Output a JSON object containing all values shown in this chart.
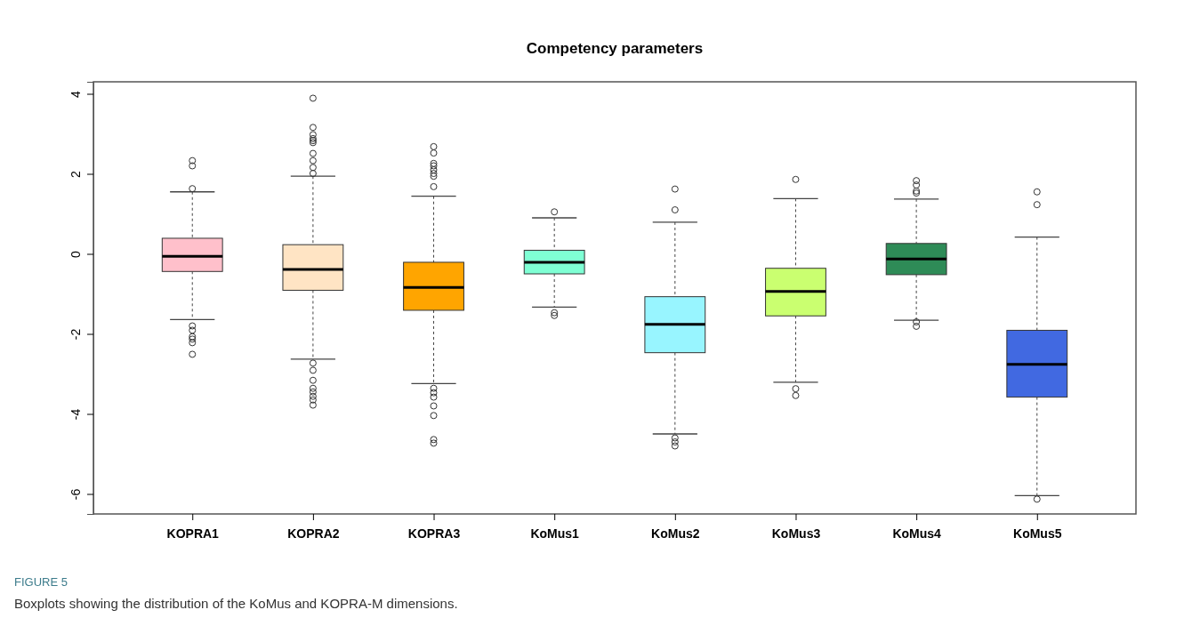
{
  "chart_data": {
    "type": "box",
    "title": "Competency parameters",
    "categories": [
      "KOPRA1",
      "KOPRA2",
      "KOPRA3",
      "KoMus1",
      "KoMus2",
      "KoMus3",
      "KoMus4",
      "KoMus5"
    ],
    "colors": [
      "#ffc0cb",
      "#ffe4c4",
      "#ffa500",
      "#7fffd4",
      "#98f5ff",
      "#caff70",
      "#2e8b57",
      "#4169e1"
    ],
    "boxes": [
      {
        "low": -1.64,
        "q1": -0.44,
        "median": -0.06,
        "q3": 0.39,
        "high": 1.55,
        "outliers": [
          1.63,
          2.2,
          2.33,
          -1.8,
          -1.91,
          -2.07,
          -2.13,
          -2.22,
          -2.51
        ]
      },
      {
        "low": -2.63,
        "q1": -0.91,
        "median": -0.39,
        "q3": 0.23,
        "high": 1.94,
        "outliers": [
          3.89,
          3.16,
          2.98,
          2.88,
          2.83,
          2.78,
          2.51,
          2.33,
          2.16,
          2.01,
          -2.73,
          -2.91,
          -3.16,
          -3.36,
          -3.45,
          -3.56,
          -3.65,
          -3.78
        ]
      },
      {
        "low": -3.24,
        "q1": -1.41,
        "median": -0.84,
        "q3": -0.21,
        "high": 1.44,
        "outliers": [
          2.68,
          2.52,
          2.26,
          2.2,
          2.1,
          2.01,
          1.94,
          1.68,
          -3.36,
          -3.47,
          -3.58,
          -3.8,
          -4.04,
          -4.64,
          -4.73
        ]
      },
      {
        "low": -1.33,
        "q1": -0.5,
        "median": -0.21,
        "q3": 0.09,
        "high": 0.9,
        "outliers": [
          1.05,
          -1.47,
          -1.54
        ]
      },
      {
        "low": -4.5,
        "q1": -2.47,
        "median": -1.76,
        "q3": -1.07,
        "high": 0.79,
        "outliers": [
          1.1,
          1.62,
          -4.6,
          -4.7,
          -4.8
        ]
      },
      {
        "low": -3.21,
        "q1": -1.55,
        "median": -0.94,
        "q3": -0.36,
        "high": 1.38,
        "outliers": [
          1.86,
          -3.37,
          -3.54
        ]
      },
      {
        "low": -1.66,
        "q1": -0.52,
        "median": -0.13,
        "q3": 0.26,
        "high": 1.37,
        "outliers": [
          1.83,
          1.72,
          1.57,
          1.52,
          -1.7,
          -1.81
        ]
      },
      {
        "low": -6.04,
        "q1": -3.58,
        "median": -2.76,
        "q3": -1.91,
        "high": 0.42,
        "outliers": [
          1.55,
          1.23,
          -6.13
        ]
      }
    ],
    "ylim": [
      -6.5,
      4.3
    ],
    "yticks": [
      -6,
      -4,
      -2,
      0,
      2,
      4
    ],
    "grid": false,
    "annotations": [
      "FIGURE 5",
      "Boxplots showing the distribution of the KoMus and KOPRA-M dimensions."
    ]
  }
}
